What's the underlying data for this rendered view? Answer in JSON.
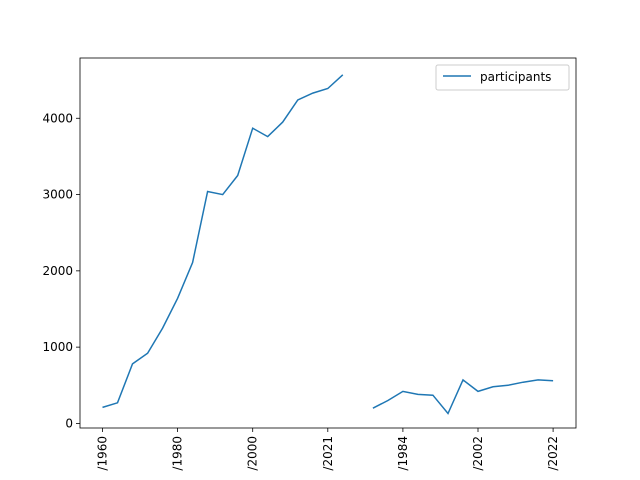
{
  "chart_data": {
    "type": "line",
    "title": "",
    "xlabel": "",
    "ylabel": "",
    "x_tick_labels": [
      "/1960",
      "/1980",
      "/2000",
      "/2021",
      "/1984",
      "/2002",
      "/2022"
    ],
    "y_ticks": [
      0,
      1000,
      2000,
      3000,
      4000
    ],
    "ylim": [
      -60,
      4790
    ],
    "legend": {
      "position": "upper-right"
    },
    "color": "#1f77b4",
    "grid": false,
    "series": [
      {
        "name": "participants",
        "segments": [
          [
            210,
            270,
            780,
            920,
            1250,
            1640,
            2110,
            3040,
            3000,
            3250,
            3870,
            3760,
            3950,
            4240,
            4330,
            4390,
            4570
          ],
          [
            200,
            300,
            420,
            380,
            370,
            130,
            570,
            420,
            480,
            500,
            540,
            570,
            560
          ]
        ]
      }
    ]
  }
}
